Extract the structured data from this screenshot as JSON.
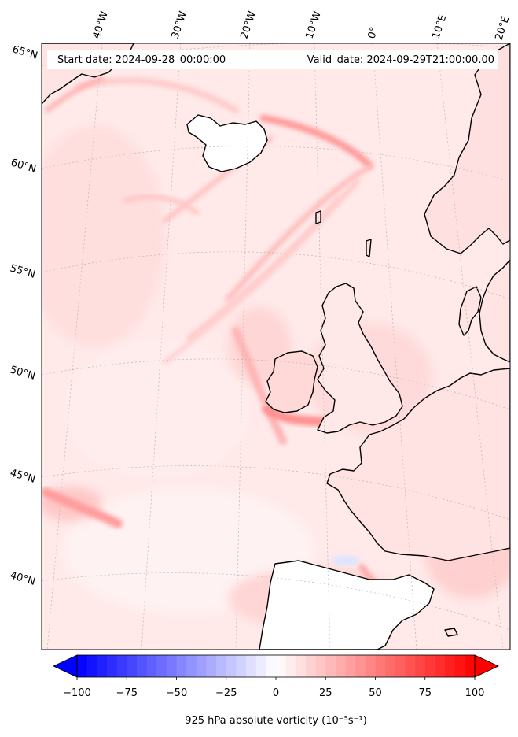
{
  "header": {
    "start_date": "Start date: 2024-09-28_00:00:00",
    "valid_date": "Valid_date: 2024-09-29T21:00:00.00"
  },
  "map": {
    "projection": "lambert-conformal",
    "longitude_labels": [
      "40°W",
      "30°W",
      "20°W",
      "10°W",
      "0°",
      "10°E",
      "20°E"
    ],
    "latitude_labels": [
      "65°N",
      "60°N",
      "55°N",
      "50°N",
      "45°N",
      "40°N"
    ],
    "field": "925 hPa absolute vorticity",
    "coastline_color": "#000000",
    "gridline_style": "dotted-grey"
  },
  "colorbar": {
    "label": "925 hPa absolute vorticity (10⁻⁵s⁻¹)",
    "ticks": [
      "−100",
      "−75",
      "−50",
      "−25",
      "0",
      "25",
      "50",
      "75",
      "100"
    ],
    "min": -100,
    "max": 100,
    "low_color": "#0000ff",
    "mid_color": "#ffffff",
    "high_color": "#ff0000",
    "extend": "both"
  }
}
